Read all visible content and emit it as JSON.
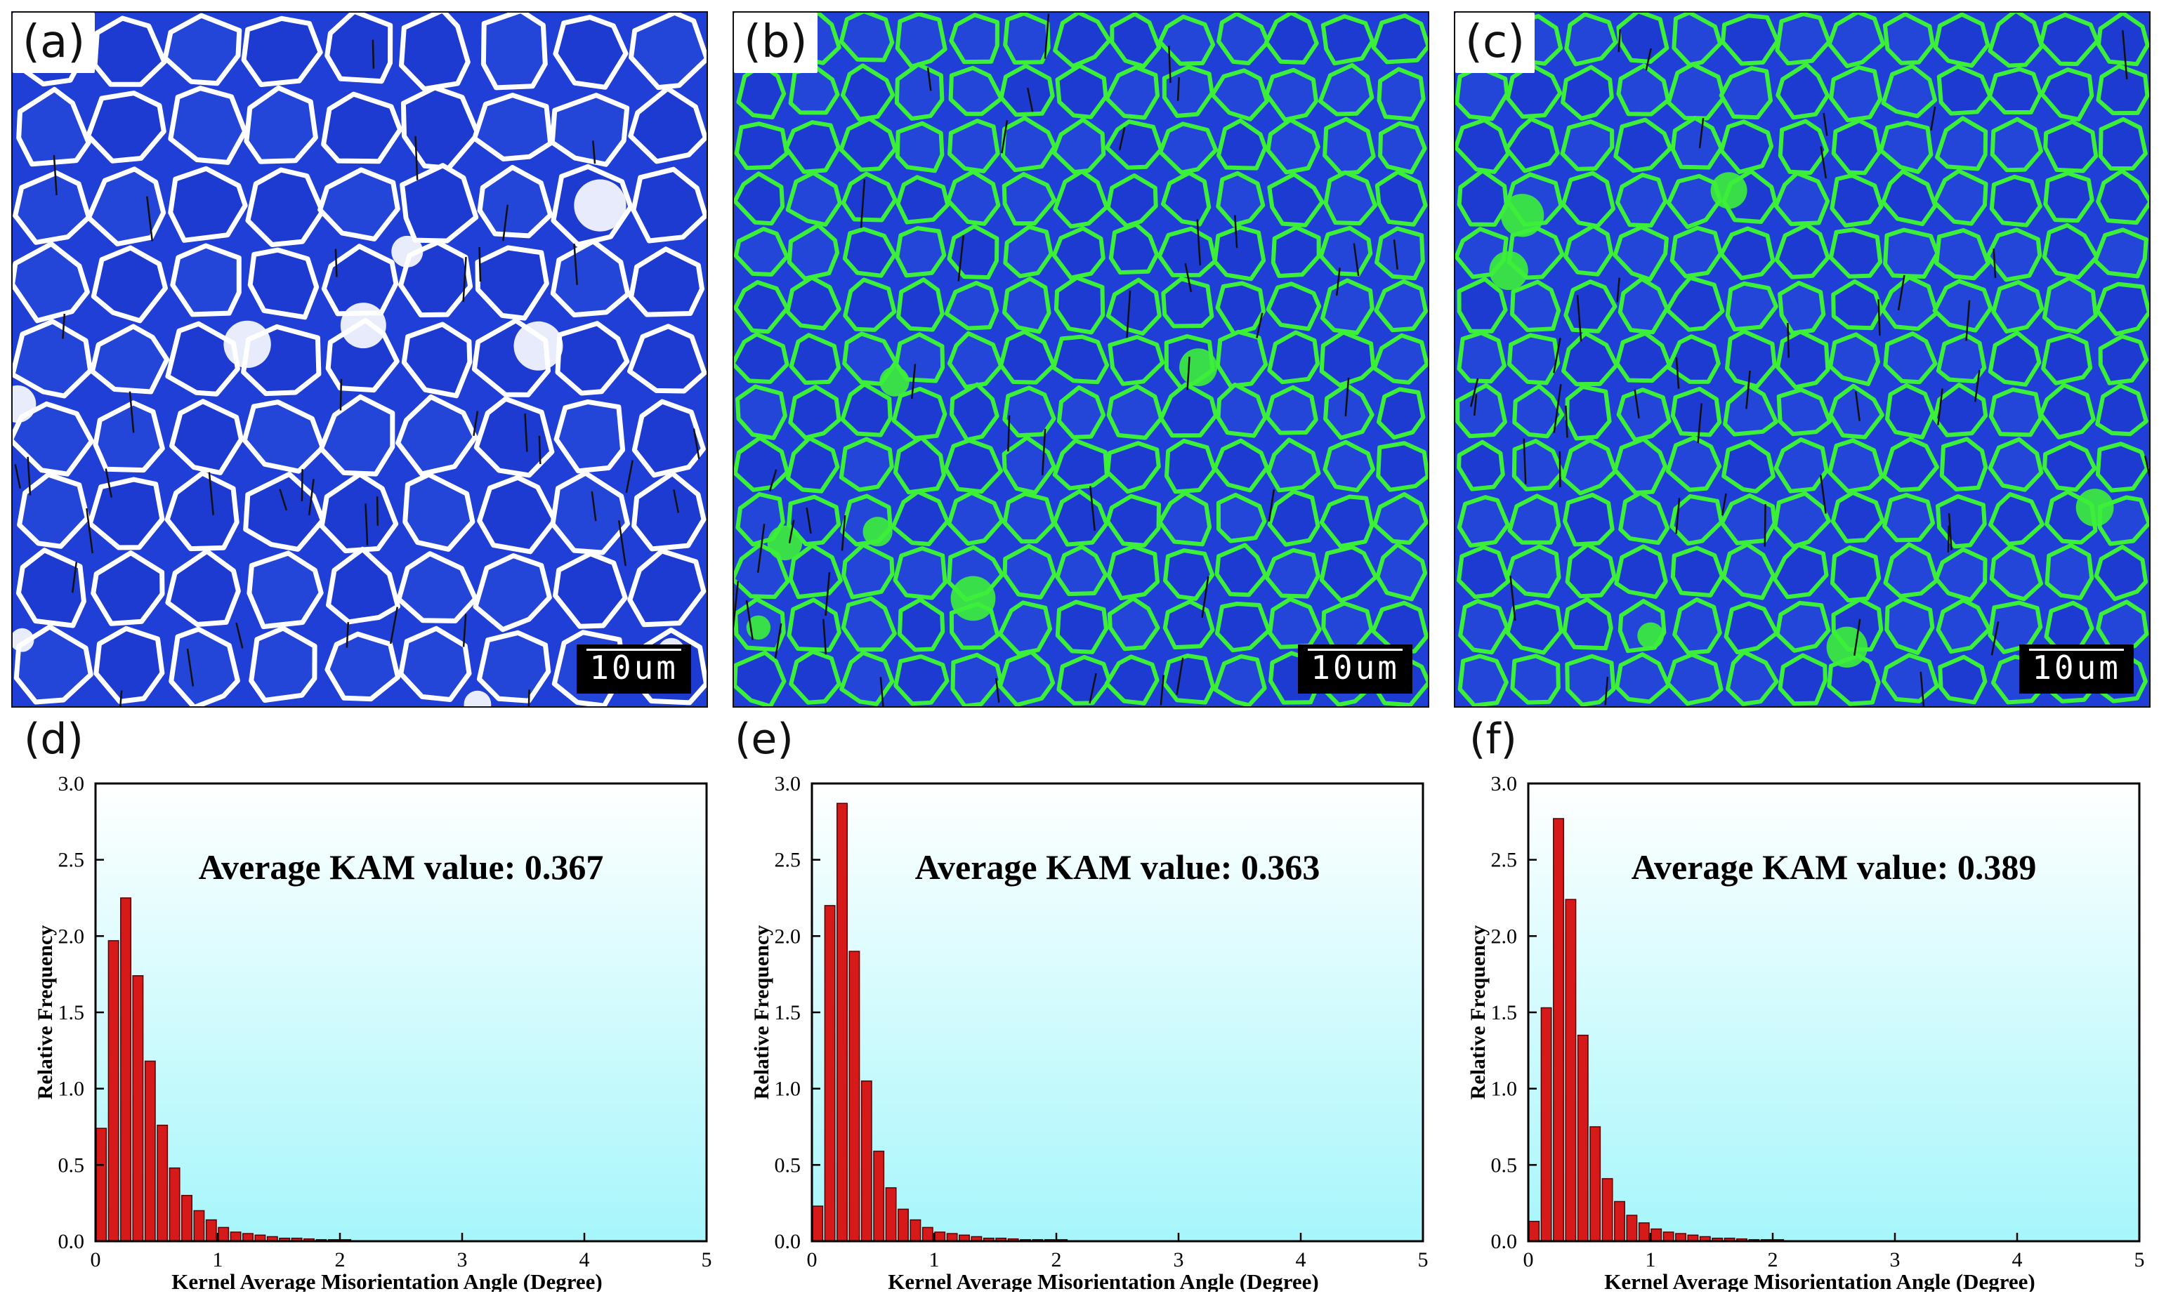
{
  "figure": {
    "panels": [
      {
        "label": "(a)",
        "scalebar": "10um",
        "boundary_color": "#ffffff",
        "bg_color": "#1f3fd6"
      },
      {
        "label": "(b)",
        "scalebar": "10um",
        "boundary_color": "#3cf03a",
        "bg_color": "#1f3fd6"
      },
      {
        "label": "(c)",
        "scalebar": "10um",
        "boundary_color": "#3cf03a",
        "bg_color": "#1f3fd6"
      }
    ]
  },
  "chart_data": [
    {
      "type": "bar",
      "panel_label": "(d)",
      "annotation": "Average KAM value: 0.367",
      "xlabel": "Kernel Average Misorientation Angle (Degree)",
      "ylabel": "Relative Frequency",
      "xlim": [
        0,
        5
      ],
      "ylim": [
        0,
        3.0
      ],
      "xticks": [
        "0",
        "1",
        "2",
        "3",
        "4",
        "5"
      ],
      "yticks": [
        "0.0",
        "0.5",
        "1.0",
        "1.5",
        "2.0",
        "2.5",
        "3.0"
      ],
      "bin_width": 0.1,
      "bar_color": "#d61a1a",
      "x": [
        0.0,
        0.1,
        0.2,
        0.3,
        0.4,
        0.5,
        0.6,
        0.7,
        0.8,
        0.9,
        1.0,
        1.1,
        1.2,
        1.3,
        1.4,
        1.5,
        1.6,
        1.7,
        1.8,
        1.9,
        2.0
      ],
      "values": [
        0.74,
        1.97,
        2.25,
        1.74,
        1.18,
        0.76,
        0.48,
        0.3,
        0.2,
        0.14,
        0.09,
        0.06,
        0.05,
        0.04,
        0.03,
        0.02,
        0.02,
        0.015,
        0.01,
        0.01,
        0.01
      ]
    },
    {
      "type": "bar",
      "panel_label": "(e)",
      "annotation": "Average KAM value: 0.363",
      "xlabel": "Kernel Average Misorientation Angle (Degree)",
      "ylabel": "Relative Frequency",
      "xlim": [
        0,
        5
      ],
      "ylim": [
        0,
        3.0
      ],
      "xticks": [
        "0",
        "1",
        "2",
        "3",
        "4",
        "5"
      ],
      "yticks": [
        "0.0",
        "0.5",
        "1.0",
        "1.5",
        "2.0",
        "2.5",
        "3.0"
      ],
      "bin_width": 0.1,
      "bar_color": "#d61a1a",
      "x": [
        0.0,
        0.1,
        0.2,
        0.3,
        0.4,
        0.5,
        0.6,
        0.7,
        0.8,
        0.9,
        1.0,
        1.1,
        1.2,
        1.3,
        1.4,
        1.5,
        1.6,
        1.7,
        1.8,
        1.9,
        2.0
      ],
      "values": [
        0.23,
        2.2,
        2.87,
        1.9,
        1.05,
        0.59,
        0.35,
        0.21,
        0.14,
        0.09,
        0.06,
        0.05,
        0.04,
        0.03,
        0.02,
        0.02,
        0.015,
        0.01,
        0.01,
        0.01,
        0.01
      ]
    },
    {
      "type": "bar",
      "panel_label": "(f)",
      "annotation": "Average KAM value: 0.389",
      "xlabel": "Kernel Average Misorientation Angle (Degree)",
      "ylabel": "Relative Frequency",
      "xlim": [
        0,
        5
      ],
      "ylim": [
        0,
        3.0
      ],
      "xticks": [
        "0",
        "1",
        "2",
        "3",
        "4",
        "5"
      ],
      "yticks": [
        "0.0",
        "0.5",
        "1.0",
        "1.5",
        "2.0",
        "2.5",
        "3.0"
      ],
      "bin_width": 0.1,
      "bar_color": "#d61a1a",
      "x": [
        0.0,
        0.1,
        0.2,
        0.3,
        0.4,
        0.5,
        0.6,
        0.7,
        0.8,
        0.9,
        1.0,
        1.1,
        1.2,
        1.3,
        1.4,
        1.5,
        1.6,
        1.7,
        1.8,
        1.9,
        2.0
      ],
      "values": [
        0.13,
        1.53,
        2.77,
        2.24,
        1.35,
        0.75,
        0.41,
        0.26,
        0.17,
        0.12,
        0.08,
        0.06,
        0.05,
        0.04,
        0.03,
        0.02,
        0.02,
        0.015,
        0.01,
        0.01,
        0.01
      ]
    }
  ]
}
